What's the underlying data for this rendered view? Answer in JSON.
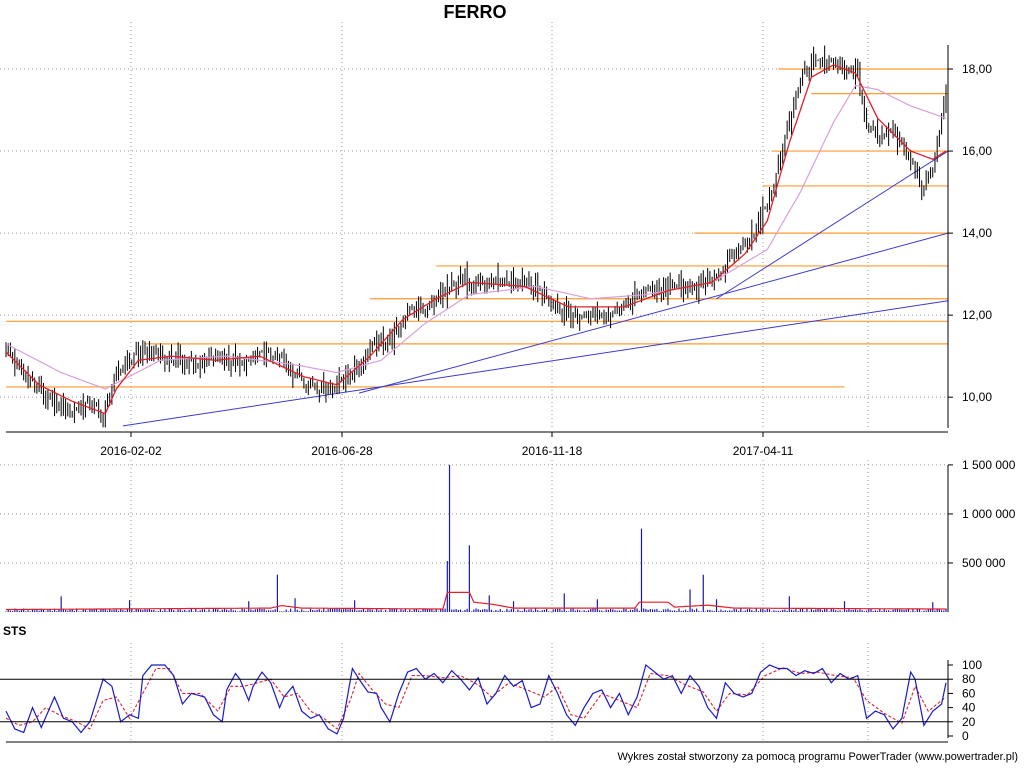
{
  "title": "FERRO",
  "credit": "Wykres został stworzony za pomocą programu PowerTrader (www.powertrader.pl)",
  "colors": {
    "candle": "#000000",
    "ma_fast": "#e0202a",
    "ma_slow": "#d9a0d9",
    "support_lines": "#ff9a30",
    "trend_lines": "#3a3acc",
    "volume_bars": "#1a1aaa",
    "volume_avg": "#e0202a",
    "sts_k": "#1a1acc",
    "sts_d": "#e0202a",
    "grid": "#9a9a9a"
  },
  "chart_data": [
    {
      "type": "candlestick",
      "name": "price",
      "title": "FERRO",
      "x_ticks": [
        "2016-02-02",
        "2016-06-28",
        "2016-11-18",
        "2017-04-11"
      ],
      "y_ticks": [
        "10,00",
        "12,00",
        "14,00",
        "16,00",
        "18,00"
      ],
      "ylim": [
        9.2,
        19.0
      ],
      "grid": true,
      "close_anchors": [
        [
          0,
          11.2
        ],
        [
          8,
          10.6
        ],
        [
          15,
          10.2
        ],
        [
          22,
          9.8
        ],
        [
          30,
          9.7
        ],
        [
          38,
          9.9
        ],
        [
          44,
          9.5
        ],
        [
          50,
          10.6
        ],
        [
          58,
          11.0
        ],
        [
          66,
          11.1
        ],
        [
          75,
          10.9
        ],
        [
          86,
          10.8
        ],
        [
          96,
          11.0
        ],
        [
          108,
          10.8
        ],
        [
          118,
          11.1
        ],
        [
          126,
          10.9
        ],
        [
          135,
          10.4
        ],
        [
          143,
          10.2
        ],
        [
          152,
          10.4
        ],
        [
          160,
          10.8
        ],
        [
          168,
          11.3
        ],
        [
          176,
          11.5
        ],
        [
          182,
          12.1
        ],
        [
          190,
          12.1
        ],
        [
          198,
          12.5
        ],
        [
          206,
          12.9
        ],
        [
          214,
          12.8
        ],
        [
          226,
          12.8
        ],
        [
          236,
          12.8
        ],
        [
          245,
          12.4
        ],
        [
          252,
          12.1
        ],
        [
          260,
          12.0
        ],
        [
          270,
          12.0
        ],
        [
          280,
          12.2
        ],
        [
          290,
          12.6
        ],
        [
          302,
          12.7
        ],
        [
          314,
          12.7
        ],
        [
          320,
          12.8
        ],
        [
          326,
          13.2
        ],
        [
          332,
          13.6
        ],
        [
          340,
          14.1
        ],
        [
          348,
          15.2
        ],
        [
          352,
          16.0
        ],
        [
          356,
          17.0
        ],
        [
          360,
          17.8
        ],
        [
          366,
          18.2
        ],
        [
          372,
          18.1
        ],
        [
          380,
          18.0
        ],
        [
          386,
          17.8
        ],
        [
          390,
          16.7
        ],
        [
          396,
          16.3
        ],
        [
          402,
          16.5
        ],
        [
          407,
          16.0
        ],
        [
          412,
          15.6
        ],
        [
          416,
          15.0
        ],
        [
          420,
          15.6
        ],
        [
          426,
          17.4
        ]
      ],
      "ma_fast_anchors": [
        [
          0,
          11.1
        ],
        [
          15,
          10.3
        ],
        [
          30,
          9.9
        ],
        [
          45,
          9.6
        ],
        [
          50,
          10.2
        ],
        [
          60,
          10.9
        ],
        [
          75,
          11.0
        ],
        [
          95,
          10.9
        ],
        [
          115,
          11.0
        ],
        [
          135,
          10.5
        ],
        [
          150,
          10.3
        ],
        [
          165,
          11.0
        ],
        [
          180,
          11.9
        ],
        [
          195,
          12.4
        ],
        [
          210,
          12.8
        ],
        [
          235,
          12.7
        ],
        [
          255,
          12.2
        ],
        [
          280,
          12.2
        ],
        [
          300,
          12.6
        ],
        [
          320,
          12.8
        ],
        [
          335,
          13.5
        ],
        [
          345,
          14.3
        ],
        [
          355,
          16.2
        ],
        [
          365,
          17.8
        ],
        [
          375,
          18.1
        ],
        [
          385,
          17.9
        ],
        [
          395,
          16.8
        ],
        [
          410,
          16.0
        ],
        [
          420,
          15.8
        ],
        [
          426,
          16.0
        ]
      ],
      "ma_slow_anchors": [
        [
          0,
          11.3
        ],
        [
          25,
          10.6
        ],
        [
          45,
          10.2
        ],
        [
          70,
          10.9
        ],
        [
          100,
          11.0
        ],
        [
          130,
          10.8
        ],
        [
          150,
          10.6
        ],
        [
          170,
          10.9
        ],
        [
          190,
          11.8
        ],
        [
          210,
          12.5
        ],
        [
          240,
          12.7
        ],
        [
          265,
          12.4
        ],
        [
          290,
          12.5
        ],
        [
          320,
          12.8
        ],
        [
          345,
          13.6
        ],
        [
          360,
          15.0
        ],
        [
          375,
          16.7
        ],
        [
          385,
          17.6
        ],
        [
          395,
          17.5
        ],
        [
          410,
          17.1
        ],
        [
          426,
          16.8
        ]
      ],
      "horizontal_levels": [
        {
          "y": 10.25,
          "from": 0,
          "to": 380
        },
        {
          "y": 11.3,
          "from": 63,
          "to": 430
        },
        {
          "y": 11.85,
          "from": 0,
          "to": 430
        },
        {
          "y": 12.4,
          "from": 165,
          "to": 430
        },
        {
          "y": 13.2,
          "from": 195,
          "to": 430
        },
        {
          "y": 14.0,
          "from": 312,
          "to": 430
        },
        {
          "y": 15.15,
          "from": 343,
          "to": 430
        },
        {
          "y": 16.0,
          "from": 347,
          "to": 430
        },
        {
          "y": 17.4,
          "from": 365,
          "to": 430
        },
        {
          "y": 18.0,
          "from": 350,
          "to": 430
        }
      ],
      "trend_lines": [
        {
          "from": [
            53,
            9.3
          ],
          "to": [
            430,
            12.35
          ]
        },
        {
          "from": [
            160,
            10.1
          ],
          "to": [
            430,
            14.0
          ]
        },
        {
          "from": [
            322,
            12.4
          ],
          "to": [
            430,
            16.0
          ]
        }
      ]
    },
    {
      "type": "bar",
      "name": "volume",
      "y_ticks": [
        "500 000",
        "1 000 000",
        "1 500 000"
      ],
      "ylim": [
        0,
        1550000
      ],
      "grid": true,
      "baseline": 15000,
      "spikes": [
        [
          25,
          160000
        ],
        [
          56,
          120000
        ],
        [
          110,
          110000
        ],
        [
          123,
          380000
        ],
        [
          131,
          140000
        ],
        [
          158,
          120000
        ],
        [
          200,
          520000
        ],
        [
          201,
          1500000
        ],
        [
          210,
          680000
        ],
        [
          219,
          170000
        ],
        [
          230,
          110000
        ],
        [
          253,
          190000
        ],
        [
          268,
          130000
        ],
        [
          288,
          850000
        ],
        [
          310,
          230000
        ],
        [
          316,
          380000
        ],
        [
          322,
          130000
        ],
        [
          355,
          160000
        ],
        [
          380,
          110000
        ],
        [
          420,
          100000
        ]
      ],
      "avg_anchors": [
        [
          0,
          25000
        ],
        [
          120,
          40000
        ],
        [
          125,
          65000
        ],
        [
          134,
          40000
        ],
        [
          198,
          30000
        ],
        [
          200,
          200000
        ],
        [
          210,
          200000
        ],
        [
          212,
          100000
        ],
        [
          220,
          80000
        ],
        [
          230,
          40000
        ],
        [
          285,
          40000
        ],
        [
          287,
          100000
        ],
        [
          300,
          100000
        ],
        [
          303,
          50000
        ],
        [
          318,
          70000
        ],
        [
          330,
          40000
        ],
        [
          426,
          30000
        ]
      ]
    },
    {
      "type": "line",
      "name": "STS",
      "title": "STS",
      "y_ticks": [
        "0",
        "20",
        "40",
        "60",
        "80",
        "100"
      ],
      "ylim": [
        0,
        100
      ],
      "reference_lines": [
        20,
        80
      ],
      "k_anchors": [
        [
          0,
          35
        ],
        [
          4,
          10
        ],
        [
          8,
          5
        ],
        [
          12,
          40
        ],
        [
          16,
          12
        ],
        [
          22,
          55
        ],
        [
          26,
          25
        ],
        [
          30,
          20
        ],
        [
          34,
          5
        ],
        [
          38,
          20
        ],
        [
          44,
          80
        ],
        [
          48,
          70
        ],
        [
          52,
          20
        ],
        [
          56,
          30
        ],
        [
          60,
          25
        ],
        [
          62,
          85
        ],
        [
          66,
          100
        ],
        [
          72,
          100
        ],
        [
          76,
          85
        ],
        [
          80,
          45
        ],
        [
          84,
          60
        ],
        [
          90,
          55
        ],
        [
          94,
          30
        ],
        [
          98,
          20
        ],
        [
          100,
          65
        ],
        [
          104,
          88
        ],
        [
          106,
          80
        ],
        [
          110,
          50
        ],
        [
          112,
          70
        ],
        [
          116,
          90
        ],
        [
          120,
          75
        ],
        [
          124,
          40
        ],
        [
          126,
          55
        ],
        [
          130,
          70
        ],
        [
          134,
          35
        ],
        [
          138,
          25
        ],
        [
          142,
          30
        ],
        [
          146,
          10
        ],
        [
          150,
          3
        ],
        [
          153,
          25
        ],
        [
          157,
          95
        ],
        [
          160,
          80
        ],
        [
          164,
          62
        ],
        [
          168,
          60
        ],
        [
          170,
          40
        ],
        [
          174,
          20
        ],
        [
          178,
          60
        ],
        [
          182,
          90
        ],
        [
          186,
          95
        ],
        [
          190,
          80
        ],
        [
          194,
          88
        ],
        [
          198,
          75
        ],
        [
          202,
          92
        ],
        [
          206,
          80
        ],
        [
          210,
          65
        ],
        [
          214,
          82
        ],
        [
          218,
          45
        ],
        [
          222,
          60
        ],
        [
          226,
          85
        ],
        [
          230,
          70
        ],
        [
          234,
          78
        ],
        [
          238,
          40
        ],
        [
          242,
          45
        ],
        [
          246,
          85
        ],
        [
          250,
          60
        ],
        [
          254,
          30
        ],
        [
          258,
          15
        ],
        [
          262,
          40
        ],
        [
          266,
          60
        ],
        [
          270,
          65
        ],
        [
          274,
          40
        ],
        [
          278,
          60
        ],
        [
          282,
          30
        ],
        [
          286,
          55
        ],
        [
          290,
          100
        ],
        [
          294,
          90
        ],
        [
          298,
          80
        ],
        [
          302,
          85
        ],
        [
          306,
          60
        ],
        [
          310,
          85
        ],
        [
          314,
          70
        ],
        [
          318,
          40
        ],
        [
          322,
          25
        ],
        [
          326,
          75
        ],
        [
          330,
          60
        ],
        [
          334,
          55
        ],
        [
          338,
          60
        ],
        [
          342,
          90
        ],
        [
          346,
          100
        ],
        [
          350,
          95
        ],
        [
          354,
          95
        ],
        [
          358,
          85
        ],
        [
          362,
          92
        ],
        [
          366,
          88
        ],
        [
          370,
          95
        ],
        [
          374,
          75
        ],
        [
          378,
          88
        ],
        [
          382,
          80
        ],
        [
          386,
          85
        ],
        [
          390,
          25
        ],
        [
          394,
          35
        ],
        [
          398,
          30
        ],
        [
          402,
          10
        ],
        [
          406,
          25
        ],
        [
          410,
          90
        ],
        [
          412,
          80
        ],
        [
          416,
          15
        ],
        [
          420,
          35
        ],
        [
          424,
          45
        ],
        [
          426,
          75
        ]
      ],
      "d_anchors": [
        [
          0,
          25
        ],
        [
          6,
          15
        ],
        [
          12,
          20
        ],
        [
          18,
          40
        ],
        [
          24,
          30
        ],
        [
          32,
          20
        ],
        [
          38,
          10
        ],
        [
          44,
          50
        ],
        [
          50,
          55
        ],
        [
          56,
          25
        ],
        [
          62,
          60
        ],
        [
          68,
          95
        ],
        [
          74,
          95
        ],
        [
          80,
          60
        ],
        [
          88,
          60
        ],
        [
          96,
          35
        ],
        [
          102,
          70
        ],
        [
          108,
          70
        ],
        [
          114,
          75
        ],
        [
          120,
          80
        ],
        [
          126,
          55
        ],
        [
          132,
          60
        ],
        [
          138,
          35
        ],
        [
          144,
          25
        ],
        [
          150,
          10
        ],
        [
          156,
          50
        ],
        [
          160,
          88
        ],
        [
          166,
          65
        ],
        [
          172,
          45
        ],
        [
          178,
          40
        ],
        [
          184,
          85
        ],
        [
          190,
          85
        ],
        [
          198,
          82
        ],
        [
          206,
          85
        ],
        [
          214,
          72
        ],
        [
          220,
          55
        ],
        [
          228,
          75
        ],
        [
          236,
          65
        ],
        [
          244,
          55
        ],
        [
          250,
          70
        ],
        [
          256,
          30
        ],
        [
          262,
          25
        ],
        [
          270,
          60
        ],
        [
          278,
          50
        ],
        [
          286,
          40
        ],
        [
          292,
          88
        ],
        [
          300,
          85
        ],
        [
          308,
          72
        ],
        [
          316,
          62
        ],
        [
          322,
          35
        ],
        [
          328,
          60
        ],
        [
          336,
          58
        ],
        [
          344,
          85
        ],
        [
          352,
          96
        ],
        [
          360,
          88
        ],
        [
          368,
          90
        ],
        [
          376,
          85
        ],
        [
          384,
          82
        ],
        [
          390,
          50
        ],
        [
          398,
          32
        ],
        [
          406,
          18
        ],
        [
          412,
          70
        ],
        [
          418,
          35
        ],
        [
          426,
          55
        ]
      ]
    }
  ]
}
